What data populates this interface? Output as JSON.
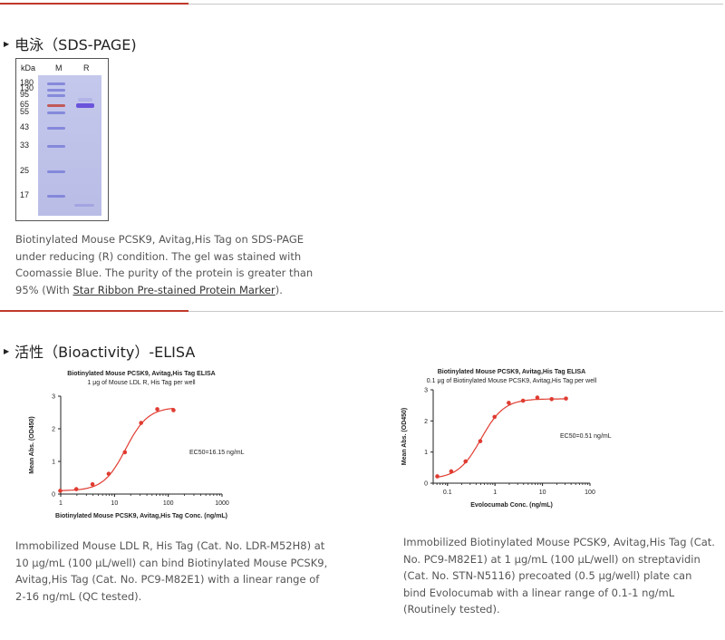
{
  "sds_section": {
    "title": "电泳（SDS-PAGE)",
    "gel": {
      "lane_labels": [
        "kDa",
        "M",
        "R"
      ],
      "markers": [
        "180",
        "130",
        "95",
        "65",
        "55",
        "43",
        "33",
        "25",
        "17"
      ]
    },
    "description_before_link": "Biotinylated Mouse PCSK9, Avitag,His Tag on SDS-PAGE under reducing (R) condition. The gel was stained with Coomassie Blue. The purity of the protein is greater than 95% (With ",
    "link_text": "Star Ribbon Pre-stained Protein Marker",
    "description_after_link": ")."
  },
  "elisa_section": {
    "title": "活性（Bioactivity）-ELISA",
    "left_description": "Immobilized Mouse LDL R, His Tag (Cat. No. LDR-M52H8) at 10 μg/mL (100 μL/well) can bind Biotinylated Mouse PCSK9, Avitag,His Tag (Cat. No. PC9-M82E1) with a linear range of 2-16 ng/mL (QC tested).",
    "right_description": "Immobilized Biotinylated Mouse PCSK9, Avitag,His Tag (Cat. No. PC9-M82E1) at 1 μg/mL (100 μL/well) on streptavidin (Cat. No. STN-N5116) precoated (0.5 μg/well) plate can bind Evolocumab with a linear range of 0.1-1 ng/mL (Routinely tested)."
  },
  "chart_data": [
    {
      "type": "scatter",
      "title": "Biotinylated Mouse PCSK9, Avitag,His Tag ELISA",
      "subtitle": "1 μg of Mouse LDL R, His Tag per well",
      "xlabel": "Biotinylated Mouse PCSK9, Avitag,His Tag Conc. (ng/mL)",
      "ylabel": "Mean Abs. (OD450)",
      "x_scale": "log",
      "xlim": [
        1,
        1000
      ],
      "ylim": [
        0,
        3
      ],
      "xticks": [
        "1",
        "10",
        "100",
        "1000"
      ],
      "yticks": [
        "0",
        "1",
        "2",
        "3"
      ],
      "annotation": "EC50=16.15 ng/mL",
      "color": "#e03c31",
      "x": [
        0.98,
        1.95,
        3.9,
        7.8,
        15.6,
        31.25,
        62.5,
        125
      ],
      "y": [
        0.1,
        0.15,
        0.3,
        0.62,
        1.28,
        2.18,
        2.6,
        2.57
      ],
      "fit": {
        "bottom": 0.1,
        "top": 2.66,
        "ec50": 16.15,
        "hill": 2.1
      }
    },
    {
      "type": "scatter",
      "title": "Biotinylated Mouse PCSK9, Avitag,His Tag ELISA",
      "subtitle": "0.1 μg of Biotinylated Mouse PCSK9, Avitag,His Tag per well",
      "xlabel": "Evolocumab Conc. (ng/mL)",
      "ylabel": "Mean Abs. (OD450)",
      "x_scale": "log",
      "xlim": [
        0.05,
        100
      ],
      "ylim": [
        0,
        3
      ],
      "xticks": [
        "0.1",
        "1",
        "10",
        "100"
      ],
      "yticks": [
        "0",
        "1",
        "2",
        "3"
      ],
      "annotation": "EC50=0.51 ng/mL",
      "color": "#e03c31",
      "x": [
        0.061,
        0.12,
        0.24,
        0.49,
        0.98,
        1.95,
        3.9,
        7.8,
        15.6,
        31.25
      ],
      "y": [
        0.22,
        0.38,
        0.7,
        1.35,
        2.13,
        2.58,
        2.65,
        2.75,
        2.7,
        2.72
      ],
      "fit": {
        "bottom": 0.14,
        "top": 2.71,
        "ec50": 0.51,
        "hill": 1.8
      }
    }
  ]
}
